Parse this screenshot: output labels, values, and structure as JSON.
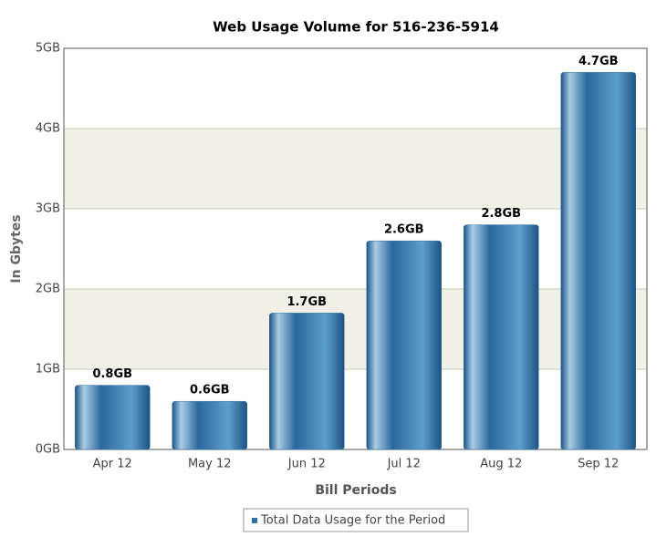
{
  "chart_data": {
    "type": "bar",
    "title": "Web Usage Volume for 516-236-5914",
    "x_label": "Bill Periods",
    "y_label": "In Gbytes",
    "categories": [
      "Apr 12",
      "May 12",
      "Jun 12",
      "Jul 12",
      "Aug 12",
      "Sep 12"
    ],
    "series": [
      {
        "name": "Total Data Usage for the Period",
        "color": "#2f6fa3",
        "values": [
          0.8,
          0.6,
          1.7,
          2.6,
          2.8,
          4.7
        ],
        "value_labels": [
          "0.8GB",
          "0.6GB",
          "1.7GB",
          "2.6GB",
          "2.8GB",
          "4.7GB"
        ]
      }
    ],
    "ylim": [
      0,
      5
    ],
    "yticks": [
      {
        "value": 0,
        "label": "0GB"
      },
      {
        "value": 1,
        "label": "1GB"
      },
      {
        "value": 2,
        "label": "2GB"
      },
      {
        "value": 3,
        "label": "3GB"
      },
      {
        "value": 4,
        "label": "4GB"
      },
      {
        "value": 5,
        "label": "5GB"
      }
    ],
    "grid": true,
    "legend": "bottom"
  }
}
